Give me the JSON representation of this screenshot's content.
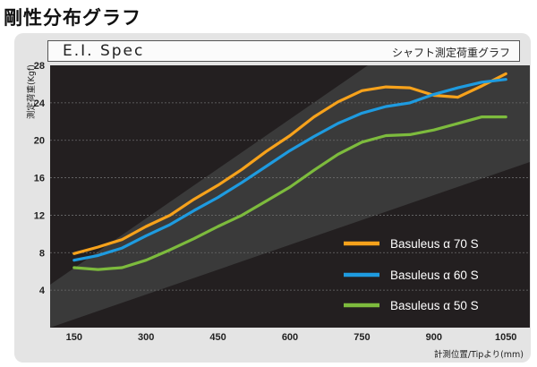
{
  "page": {
    "heading": "剛性分布グラフ"
  },
  "panel": {
    "title": "E.I. Spec",
    "subtitle": "シャフト測定荷重グラフ"
  },
  "colors": {
    "plot_background": "#231f20",
    "band_fill": "#3a3a3a",
    "panel_background": "#e4e4e4",
    "grid_line": "#6b6b6b"
  },
  "chart_data": {
    "type": "line",
    "xlabel": "計測位置/Tipより(mm)",
    "ylabel": "測定荷重(Kgf)",
    "xlim": [
      150,
      1050
    ],
    "ylim": [
      0,
      28
    ],
    "x_ticks": [
      150,
      300,
      450,
      600,
      750,
      900,
      1050
    ],
    "y_ticks": [
      4,
      8,
      12,
      16,
      20,
      24,
      28
    ],
    "grid": true,
    "legend_position": "bottom-right",
    "x": [
      150,
      200,
      250,
      300,
      350,
      400,
      450,
      500,
      550,
      600,
      650,
      700,
      750,
      800,
      850,
      900,
      950,
      1000,
      1050
    ],
    "series": [
      {
        "name": "Basuleus α 70 S",
        "color": "#f7a21b",
        "values": [
          7.9,
          8.6,
          9.4,
          10.8,
          12.0,
          13.7,
          15.2,
          16.9,
          18.8,
          20.5,
          22.5,
          24.1,
          25.3,
          25.7,
          25.6,
          24.8,
          24.6,
          25.8,
          27.1
        ]
      },
      {
        "name": "Basuleus α 60 S",
        "color": "#1e9be0",
        "values": [
          7.2,
          7.7,
          8.5,
          9.8,
          11.0,
          12.5,
          13.9,
          15.5,
          17.2,
          18.9,
          20.4,
          21.8,
          22.9,
          23.6,
          24.0,
          24.9,
          25.6,
          26.2,
          26.5
        ]
      },
      {
        "name": "Basuleus α 50 S",
        "color": "#7dbb3d",
        "values": [
          6.4,
          6.2,
          6.4,
          7.2,
          8.3,
          9.5,
          10.8,
          12.0,
          13.5,
          15.0,
          16.8,
          18.5,
          19.8,
          20.5,
          20.6,
          21.1,
          21.8,
          22.5,
          22.5
        ]
      }
    ]
  }
}
